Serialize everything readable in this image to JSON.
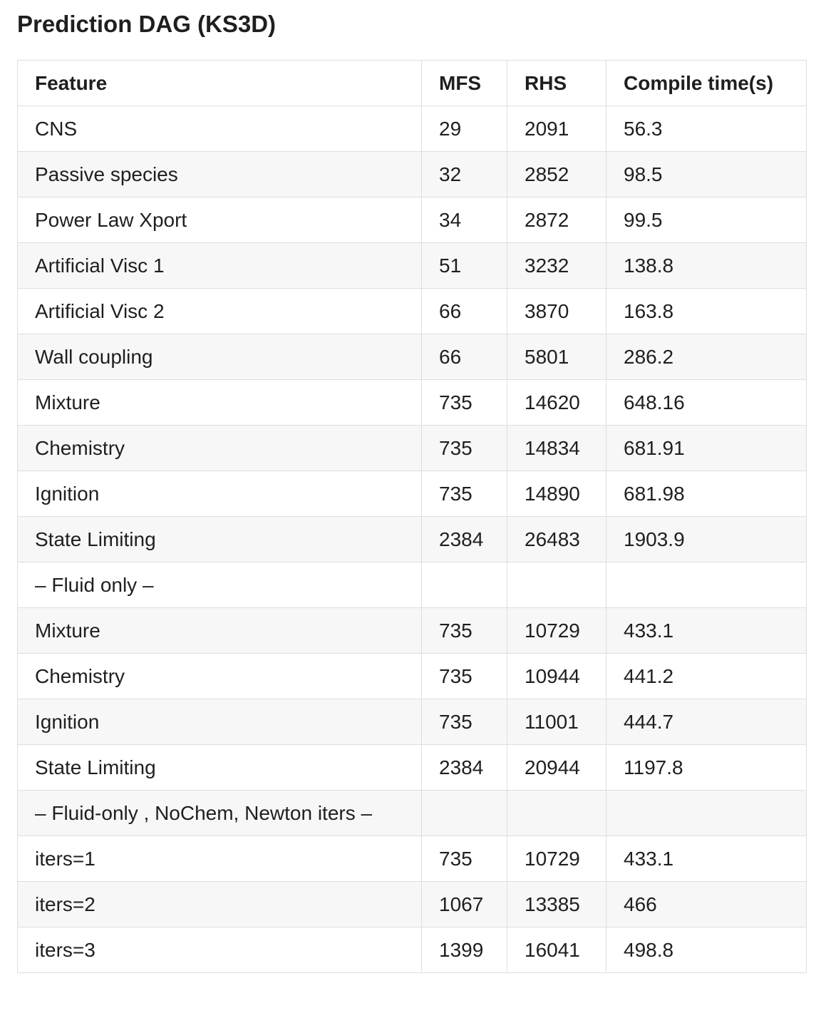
{
  "title": "Prediction DAG (KS3D)",
  "table": {
    "headers": [
      "Feature",
      "MFS",
      "RHS",
      "Compile time(s)"
    ],
    "rows": [
      [
        "CNS",
        "29",
        "2091",
        "56.3"
      ],
      [
        "Passive species",
        "32",
        "2852",
        "98.5"
      ],
      [
        "Power Law Xport",
        "34",
        "2872",
        "99.5"
      ],
      [
        "Artificial Visc 1",
        "51",
        "3232",
        "138.8"
      ],
      [
        "Artificial Visc 2",
        "66",
        "3870",
        "163.8"
      ],
      [
        "Wall coupling",
        "66",
        "5801",
        "286.2"
      ],
      [
        "Mixture",
        "735",
        "14620",
        "648.16"
      ],
      [
        "Chemistry",
        "735",
        "14834",
        "681.91"
      ],
      [
        "Ignition",
        "735",
        "14890",
        "681.98"
      ],
      [
        "State Limiting",
        "2384",
        "26483",
        "1903.9"
      ],
      [
        "– Fluid only –",
        "",
        "",
        ""
      ],
      [
        "Mixture",
        "735",
        "10729",
        "433.1"
      ],
      [
        "Chemistry",
        "735",
        "10944",
        "441.2"
      ],
      [
        "Ignition",
        "735",
        "11001",
        "444.7"
      ],
      [
        "State Limiting",
        "2384",
        "20944",
        "1197.8"
      ],
      [
        "– Fluid-only , NoChem, Newton iters –",
        "",
        "",
        ""
      ],
      [
        "iters=1",
        "735",
        "10729",
        "433.1"
      ],
      [
        "iters=2",
        "1067",
        "13385",
        "466"
      ],
      [
        "iters=3",
        "1399",
        "16041",
        "498.8"
      ]
    ]
  }
}
